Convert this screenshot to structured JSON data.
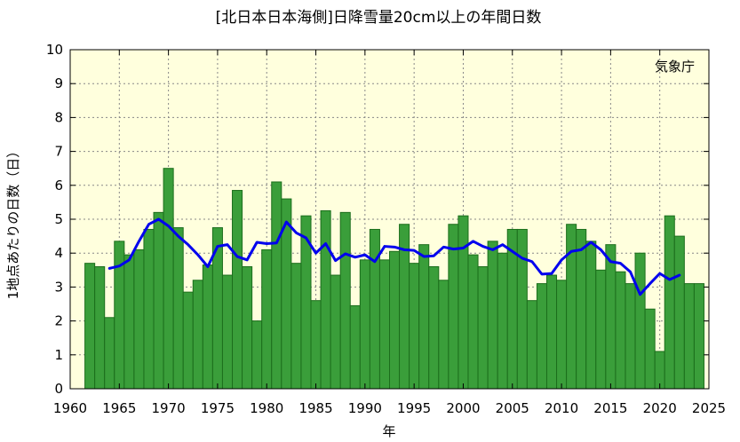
{
  "chart_data": {
    "type": "bar",
    "title": "[北日本日本海側]日降雪量20cm以上の年間日数",
    "xlabel": "年",
    "ylabel": "1地点あたりの日数（日）",
    "credit": "気象庁",
    "xlim": [
      1960,
      2025
    ],
    "ylim": [
      0,
      10
    ],
    "x_ticks": [
      1960,
      1965,
      1970,
      1975,
      1980,
      1985,
      1990,
      1995,
      2000,
      2005,
      2010,
      2015,
      2020,
      2025
    ],
    "y_ticks": [
      0,
      1,
      2,
      3,
      4,
      5,
      6,
      7,
      8,
      9,
      10
    ],
    "grid": true,
    "colors": {
      "plot_background": "#ffffdd",
      "bar_fill": "#3a9e3a",
      "bar_edge": "#1c6e1c",
      "line": "#0000ee",
      "grid": "#888888"
    },
    "series": [
      {
        "kind": "bar",
        "x": [
          1962,
          1963,
          1964,
          1965,
          1966,
          1967,
          1968,
          1969,
          1970,
          1971,
          1972,
          1973,
          1974,
          1975,
          1976,
          1977,
          1978,
          1979,
          1980,
          1981,
          1982,
          1983,
          1984,
          1985,
          1986,
          1987,
          1988,
          1989,
          1990,
          1991,
          1992,
          1993,
          1994,
          1995,
          1996,
          1997,
          1998,
          1999,
          2000,
          2001,
          2002,
          2003,
          2004,
          2005,
          2006,
          2007,
          2008,
          2009,
          2010,
          2011,
          2012,
          2013,
          2014,
          2015,
          2016,
          2017,
          2018,
          2019,
          2020,
          2021,
          2022,
          2023,
          2024
        ],
        "values": [
          3.7,
          3.6,
          2.1,
          4.35,
          3.95,
          4.1,
          4.7,
          5.2,
          6.5,
          4.75,
          2.85,
          3.2,
          3.65,
          4.75,
          3.35,
          5.85,
          3.6,
          2.0,
          4.1,
          6.1,
          5.6,
          3.7,
          5.1,
          2.6,
          5.25,
          3.35,
          5.2,
          2.45,
          3.8,
          4.7,
          3.8,
          4.05,
          4.85,
          3.7,
          4.25,
          3.6,
          3.2,
          4.85,
          5.1,
          3.95,
          3.6,
          4.35,
          4.0,
          4.7,
          4.7,
          2.6,
          3.1,
          3.35,
          3.2,
          4.85,
          4.7,
          4.35,
          3.5,
          4.25,
          3.45,
          3.1,
          4.0,
          2.35,
          1.1,
          5.1,
          4.5,
          3.1,
          3.1
        ]
      },
      {
        "kind": "line",
        "x": [
          1964,
          1965,
          1966,
          1967,
          1968,
          1969,
          1970,
          1971,
          1972,
          1973,
          1974,
          1975,
          1976,
          1977,
          1978,
          1979,
          1980,
          1981,
          1982,
          1983,
          1984,
          1985,
          1986,
          1987,
          1988,
          1989,
          1990,
          1991,
          1992,
          1993,
          1994,
          1995,
          1996,
          1997,
          1998,
          1999,
          2000,
          2001,
          2002,
          2003,
          2004,
          2005,
          2006,
          2007,
          2008,
          2009,
          2010,
          2011,
          2012,
          2013,
          2014,
          2015,
          2016,
          2017,
          2018,
          2019,
          2020,
          2021,
          2022
        ],
        "values": [
          3.55,
          3.62,
          3.8,
          4.35,
          4.85,
          5.0,
          4.8,
          4.5,
          4.25,
          3.95,
          3.6,
          4.2,
          4.25,
          3.9,
          3.8,
          4.32,
          4.28,
          4.3,
          4.92,
          4.6,
          4.45,
          4.0,
          4.28,
          3.78,
          3.98,
          3.88,
          3.95,
          3.75,
          4.2,
          4.18,
          4.1,
          4.08,
          3.9,
          3.92,
          4.18,
          4.12,
          4.15,
          4.35,
          4.2,
          4.1,
          4.25,
          4.05,
          3.85,
          3.75,
          3.38,
          3.4,
          3.8,
          4.05,
          4.1,
          4.32,
          4.1,
          3.75,
          3.7,
          3.45,
          2.78,
          3.1,
          3.4,
          3.22,
          3.35
        ]
      }
    ]
  }
}
